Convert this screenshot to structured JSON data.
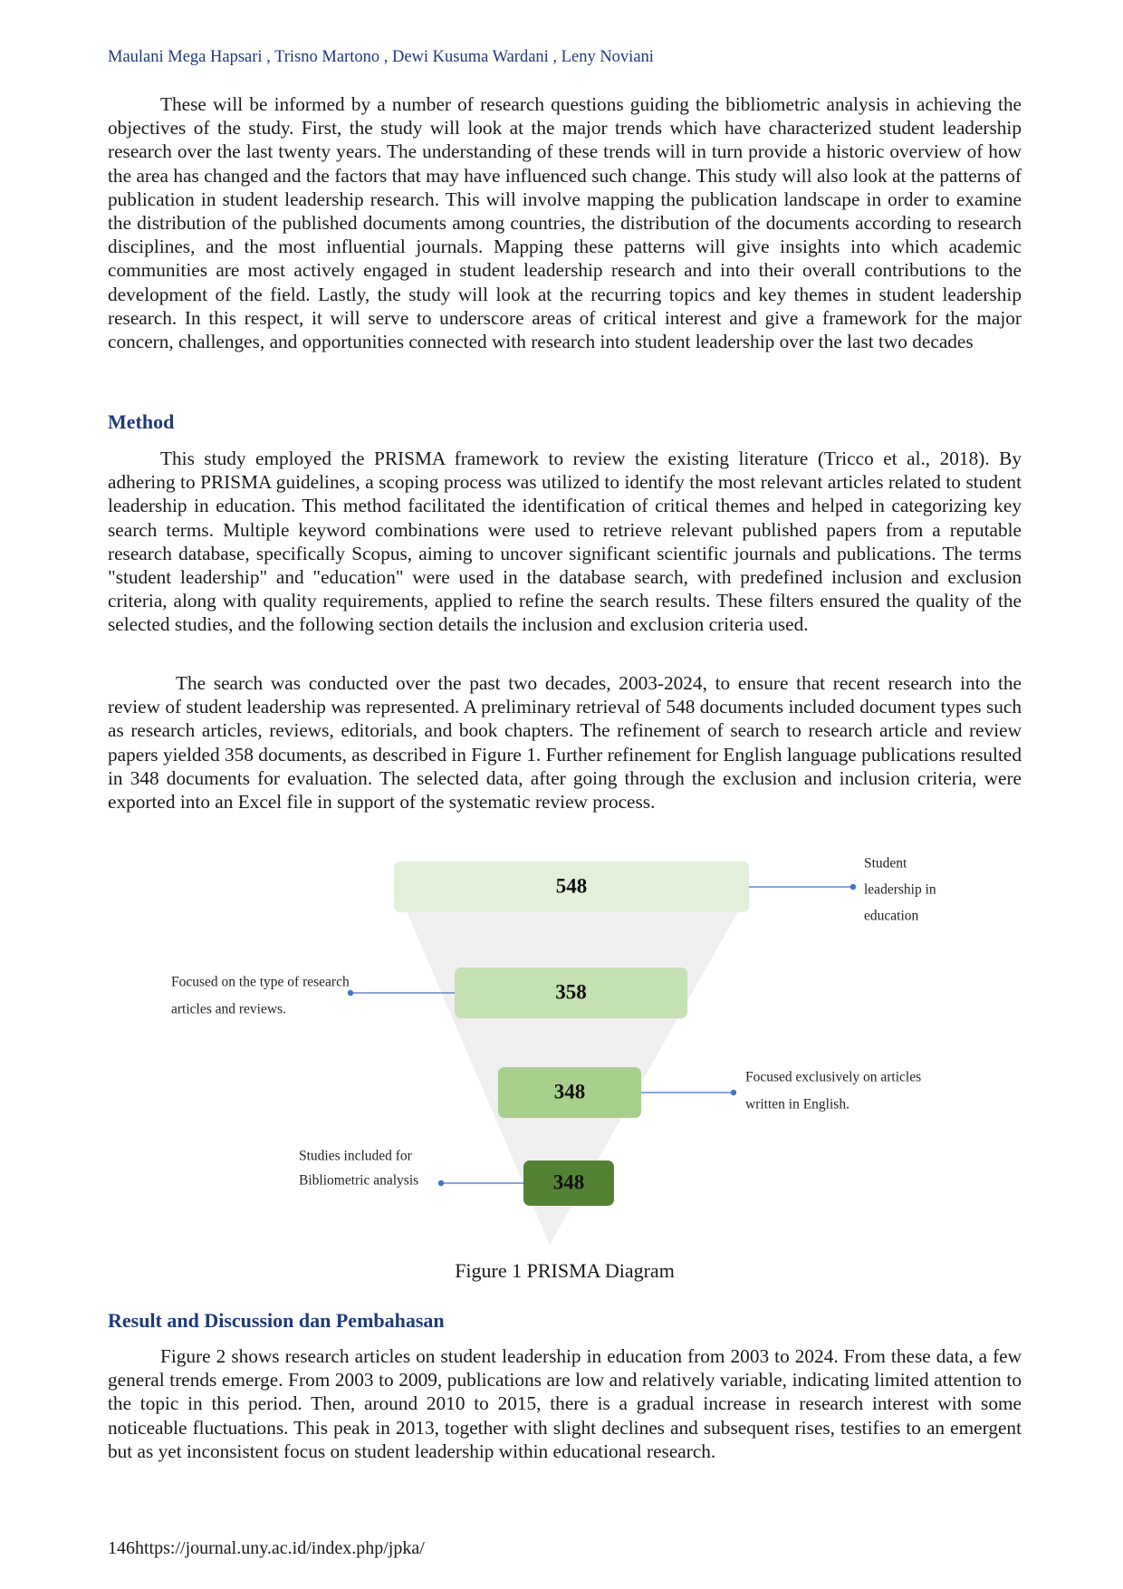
{
  "header": {
    "authors": "Maulani Mega Hapsari , Trisno Martono , Dewi Kusuma Wardani , Leny Noviani"
  },
  "intro": {
    "paragraphs": [
      "These will be informed by a number of research questions guiding the bibliometric analysis in achieving the objectives of the study. First, the study will look at the major trends which have characterized student leadership research over the last twenty years. The understanding of these trends will in turn provide a historic overview of how the area has changed and the factors that may have influenced such change. This study will also look at the patterns of publication in student leadership research. This will involve mapping the publication landscape in order to examine the distribution of the published documents among countries, the distribution of the documents according to research disciplines, and the most influential journals. Mapping these patterns will give insights into which academic communities are most actively engaged in student leadership research and into their overall contributions to the development of the field. Lastly, the study will look at the recurring topics and key themes in student leadership research. In this respect, it will serve to underscore areas of critical interest and give a framework for the major concern, challenges, and opportunities connected with research into student leadership over the last two decades"
    ]
  },
  "method": {
    "heading": "Method",
    "paragraphs": [
      "This study employed the PRISMA framework to review the existing literature (Tricco et al., 2018). By adhering to PRISMA guidelines, a scoping process was utilized to identify the most relevant articles related to student leadership in education. This method facilitated the identification of critical themes and helped in categorizing key search terms. Multiple keyword combinations were used to retrieve relevant published papers from a reputable research database, specifically Scopus, aiming to uncover significant scientific journals and publications. The terms \"student leadership\" and \"education\" were used in the database search, with predefined inclusion and exclusion criteria, along with quality requirements, applied to refine the search results. These filters ensured the quality of the selected studies, and the following section details the inclusion and exclusion criteria used.",
      "The search was conducted over the past two decades, 2003-2024, to ensure that recent research into the review of student leadership was represented. A preliminary retrieval of 548 documents included document types such as research articles, reviews, editorials, and book chapters. The refinement of search to research article and review papers yielded 358 documents, as described in Figure 1. Further refinement for English language publications resulted in 348 documents for evaluation. The selected data, after going through the exclusion and inclusion criteria, were exported into an Excel file in support of the systematic review process."
    ]
  },
  "figure": {
    "stages": [
      {
        "count": 548,
        "note": [
          "Student",
          "leadership in",
          "education"
        ]
      },
      {
        "count": 358,
        "note": [
          "Focused on the type of research",
          "articles and reviews."
        ]
      },
      {
        "count": 348,
        "note": [
          "Focused exclusively on articles",
          "written in English."
        ]
      },
      {
        "count": 348,
        "note": [
          "Studies included for",
          "Bibliometric analysis"
        ]
      }
    ],
    "caption": "Figure 1 PRISMA Diagram"
  },
  "results": {
    "heading": "Result and Discussion dan Pembahasan",
    "paragraphs": [
      "Figure 2 shows research articles on student leadership in education from 2003 to 2024. From these data, a few general trends emerge. From 2003 to 2009, publications are low and relatively variable, indicating limited attention to the topic in this period. Then, around 2010 to 2015, there is a gradual increase in research interest with some noticeable fluctuations. This peak in 2013, together with slight declines and subsequent rises, testifies to an emergent but as yet inconsistent focus on student leadership within educational research."
    ]
  },
  "footer": {
    "page": "146",
    "url": "https://journal.uny.ac.id/index.php/jpka/"
  }
}
